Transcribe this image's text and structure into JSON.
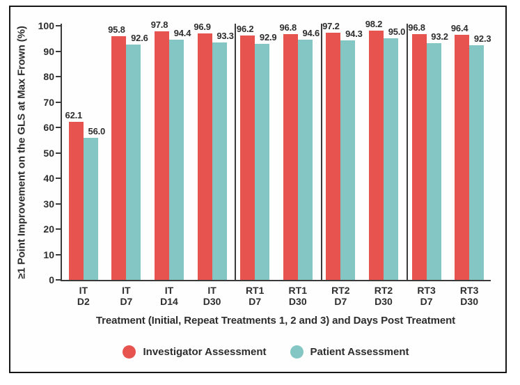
{
  "chart_data": {
    "type": "bar",
    "title": "",
    "ylabel": "≥1 Point Improvement on the GLS at Max Frown (%)",
    "xlabel": "Treatment (Initial, Repeat Treatments 1, 2 and 3) and Days Post Treatment",
    "categories": [
      {
        "treatment": "IT",
        "day": "D2"
      },
      {
        "treatment": "IT",
        "day": "D7"
      },
      {
        "treatment": "IT",
        "day": "D14"
      },
      {
        "treatment": "IT",
        "day": "D30"
      },
      {
        "treatment": "RT1",
        "day": "D7"
      },
      {
        "treatment": "RT1",
        "day": "D30"
      },
      {
        "treatment": "RT2",
        "day": "D7"
      },
      {
        "treatment": "RT2",
        "day": "D30"
      },
      {
        "treatment": "RT3",
        "day": "D7"
      },
      {
        "treatment": "RT3",
        "day": "D30"
      }
    ],
    "series": [
      {
        "name": "Investigator Assessment",
        "color": "#e7534f",
        "values": [
          62.1,
          95.8,
          97.8,
          96.9,
          96.2,
          96.8,
          97.2,
          98.2,
          96.8,
          96.4
        ]
      },
      {
        "name": "Patient Assessment",
        "color": "#84c6c3",
        "values": [
          56.0,
          92.6,
          94.4,
          93.3,
          92.9,
          94.6,
          94.3,
          95.0,
          93.2,
          92.3
        ]
      }
    ],
    "ylim": [
      0,
      100
    ],
    "yticks": [
      0,
      10,
      20,
      30,
      40,
      50,
      60,
      70,
      80,
      90,
      100
    ],
    "group_dividers_after": [
      4,
      6,
      8
    ],
    "value_labels_decimals": 1,
    "legend_position": "bottom",
    "grid": false,
    "axis_color": "#3a3a3a",
    "text_color": "#2d2d2d"
  }
}
